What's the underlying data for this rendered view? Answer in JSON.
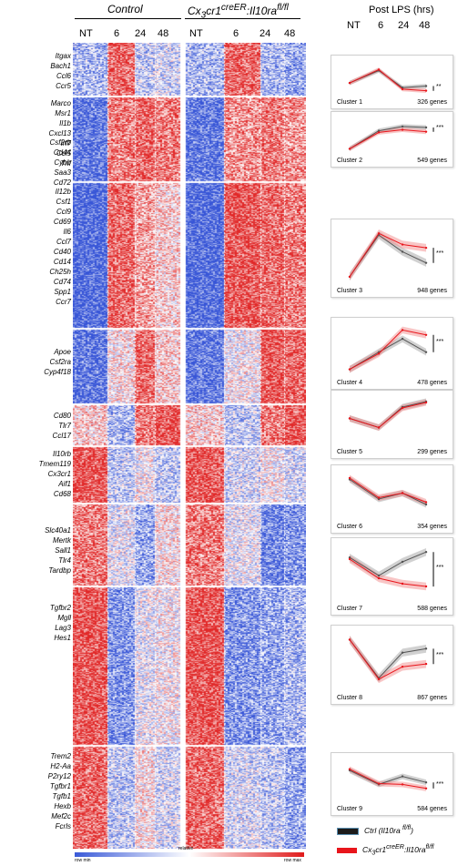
{
  "header": {
    "group_control": "Control",
    "group_mutant_html": "Cx<sub>3</sub>cr1<sup>creER</sup>:Il10ra<sup>fl/fl</sup>",
    "timepoints": [
      "NT",
      "6",
      "24",
      "48"
    ],
    "post_lps": "Post LPS (hrs)"
  },
  "gene_groups": [
    {
      "genes": [
        "Itgax",
        "Bach1",
        "Ccl6",
        "Ccr5"
      ]
    },
    {
      "genes": [
        "Marco",
        "Msr1",
        "Il1b",
        "Cxcl13",
        "Irf7",
        "Ccl5",
        "Tnf"
      ]
    },
    {
      "genes": [
        "Csf2rb",
        "Cd44",
        "Cybb",
        "Saa3",
        "Cd72"
      ]
    },
    {
      "genes": [
        "Il12b",
        "Csf1",
        "Ccl9",
        "Cd69",
        "Il6",
        "Ccl7",
        "Cd40",
        "Cd14",
        "Ch25h",
        "Cd74",
        "Spp1",
        "Ccr7"
      ]
    },
    {
      "genes": [
        "Apoe",
        "Csf2ra",
        "Cyp4f18"
      ]
    },
    {
      "genes": [
        "Cd80",
        "Tlr7",
        "Ccl17"
      ]
    },
    {
      "genes": [
        "Il10rb",
        "Tmem119",
        "Cx3cr1",
        "Aif1",
        "Cd68"
      ]
    },
    {
      "genes": [
        "Slc40a1",
        "Mertk",
        "Sall1",
        "Tlr4",
        "Tardbp"
      ]
    },
    {
      "genes": [
        "Tgfbr2",
        "Mgll",
        "Lag3",
        "Hes1"
      ]
    },
    {
      "genes": [
        "Trem2",
        "H2-Aa",
        "P2ry12",
        "Tgfbr1",
        "Tgfb1",
        "Hexb",
        "Mef2c",
        "Fcrls"
      ]
    }
  ],
  "clusters": [
    {
      "label": "Cluster 1",
      "genes": "326 genes",
      "sig": "**",
      "ctrl": [
        0.35,
        0.75,
        0.2,
        0.25
      ],
      "mut": [
        0.35,
        0.78,
        0.15,
        0.1
      ]
    },
    {
      "label": "Cluster 2",
      "genes": "549 genes",
      "sig": "***",
      "ctrl": [
        0.1,
        0.65,
        0.78,
        0.75
      ],
      "mut": [
        0.1,
        0.6,
        0.68,
        0.62
      ]
    },
    {
      "label": "Cluster 3",
      "genes": "948 genes",
      "sig": "***",
      "ctrl": [
        0.1,
        0.85,
        0.55,
        0.35
      ],
      "mut": [
        0.1,
        0.88,
        0.68,
        0.62
      ]
    },
    {
      "label": "Cluster 4",
      "genes": "478 genes",
      "sig": "***",
      "ctrl": [
        0.1,
        0.45,
        0.72,
        0.45
      ],
      "mut": [
        0.1,
        0.42,
        0.9,
        0.8
      ]
    },
    {
      "label": "Cluster 5",
      "genes": "299 genes",
      "sig": "",
      "ctrl": [
        0.55,
        0.35,
        0.8,
        0.92
      ],
      "mut": [
        0.55,
        0.35,
        0.78,
        0.9
      ]
    },
    {
      "label": "Cluster 6",
      "genes": "354 genes",
      "sig": "",
      "ctrl": [
        0.85,
        0.42,
        0.55,
        0.3
      ],
      "mut": [
        0.88,
        0.45,
        0.55,
        0.35
      ]
    },
    {
      "label": "Cluster 7",
      "genes": "588 genes",
      "sig": "***",
      "ctrl": [
        0.78,
        0.45,
        0.7,
        0.88
      ],
      "mut": [
        0.75,
        0.4,
        0.3,
        0.25
      ]
    },
    {
      "label": "Cluster 8",
      "genes": "867 genes",
      "sig": "***",
      "ctrl": [
        0.88,
        0.2,
        0.65,
        0.72
      ],
      "mut": [
        0.88,
        0.18,
        0.4,
        0.45
      ]
    },
    {
      "label": "Cluster 9",
      "genes": "584 genes",
      "sig": "***",
      "ctrl": [
        0.75,
        0.4,
        0.6,
        0.45
      ],
      "mut": [
        0.78,
        0.42,
        0.4,
        0.3
      ]
    }
  ],
  "legend": {
    "ctrl_html": "Ctrl (Il10ra <sup>fl/fl</sup>)",
    "mut_html": "Cx<sub>3</sub>cr1<sup>creER</sup>:Il10ra<sup>fl/fl</sup>",
    "ctrl_color": "#1b1b1b",
    "mut_color": "#e8151b"
  },
  "colorbar": {
    "left_label": "row min",
    "mid_label": "relative",
    "right_label": "row max",
    "low_color": "#3a5ad8",
    "mid_color": "#ffffff",
    "high_color": "#e01a1a"
  }
}
